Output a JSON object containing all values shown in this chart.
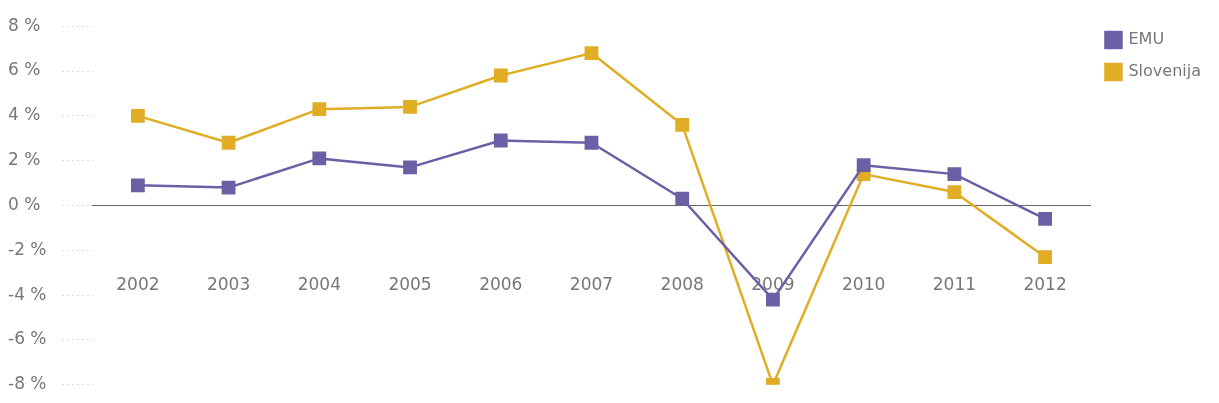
{
  "chart_data": {
    "type": "line",
    "categories": [
      "2002",
      "2003",
      "2004",
      "2005",
      "2006",
      "2007",
      "2008",
      "2009",
      "2010",
      "2011",
      "2012"
    ],
    "series": [
      {
        "name": "EMU",
        "color": "#6b5fa5",
        "values": [
          0.9,
          0.8,
          2.1,
          1.7,
          2.9,
          2.8,
          0.3,
          -4.2,
          1.8,
          1.4,
          -0.6
        ]
      },
      {
        "name": "Slovenija",
        "color": "#e0ad25",
        "values": [
          4.0,
          2.8,
          4.3,
          4.4,
          5.8,
          6.8,
          3.6,
          -8.0,
          1.4,
          0.6,
          -2.3
        ]
      }
    ],
    "ylim": [
      -8,
      8
    ],
    "yticks": [
      {
        "value": -8,
        "label": "-8 %"
      },
      {
        "value": -6,
        "label": "-6 %"
      },
      {
        "value": -4,
        "label": "-4 %"
      },
      {
        "value": -2,
        "label": "-2 %"
      },
      {
        "value": 0,
        "label": "0 %"
      },
      {
        "value": 2,
        "label": "2 %"
      },
      {
        "value": 4,
        "label": "4 %"
      },
      {
        "value": 6,
        "label": "6 %"
      },
      {
        "value": 8,
        "label": "8 %"
      }
    ],
    "marker": "square",
    "line_style": "solid",
    "legend": "top right"
  }
}
